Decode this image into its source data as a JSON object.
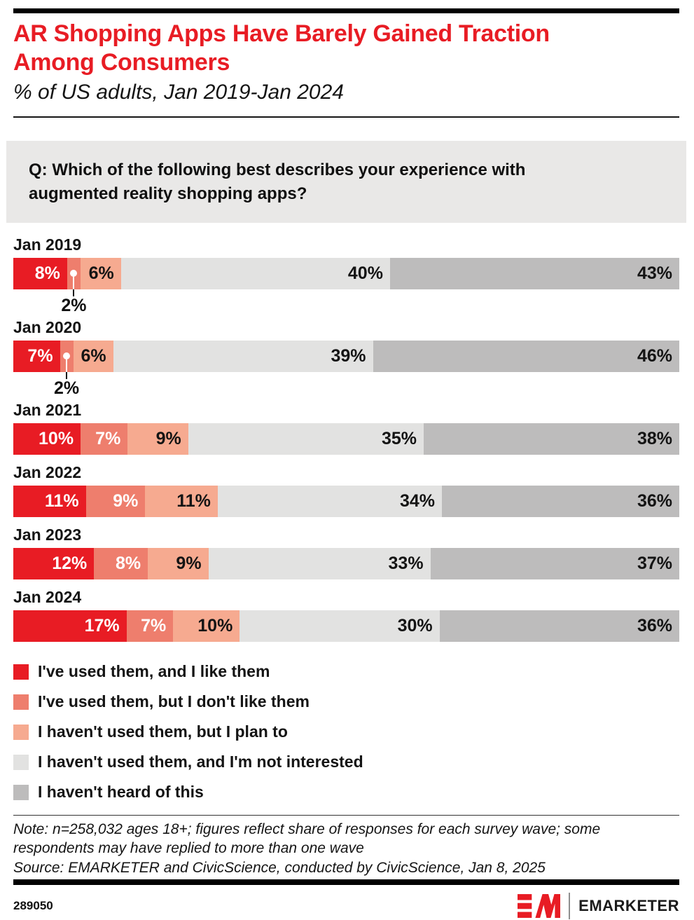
{
  "header": {
    "title_line1": "AR Shopping Apps Have Barely Gained Traction",
    "title_line2": "Among Consumers",
    "subtitle": "% of US adults, Jan 2019-Jan 2024"
  },
  "question": {
    "line1": "Q: Which of the following best describes your experience with",
    "line2": "augmented reality shopping apps?"
  },
  "chart_data": {
    "type": "bar",
    "variant": "horizontal-stacked-100",
    "unit": "%",
    "callout_max": 2,
    "legend_position": "bottom",
    "categories": [
      "Jan 2019",
      "Jan 2020",
      "Jan 2021",
      "Jan 2022",
      "Jan 2023",
      "Jan 2024"
    ],
    "series": [
      {
        "name": "I've used them, and I like them",
        "color": "#e81c24",
        "text_color": "#ffffff",
        "values": [
          8,
          7,
          10,
          11,
          12,
          17
        ]
      },
      {
        "name": "I've used them, but I don't like them",
        "color": "#ee7e6d",
        "text_color": "#ffffff",
        "values": [
          2,
          2,
          7,
          9,
          8,
          7
        ]
      },
      {
        "name": "I haven't used them, but I plan to",
        "color": "#f6aa90",
        "text_color": "#141414",
        "values": [
          6,
          6,
          9,
          11,
          9,
          10
        ]
      },
      {
        "name": "I haven't used them, and I'm not interested",
        "color": "#e2e2e1",
        "text_color": "#141414",
        "values": [
          40,
          39,
          35,
          34,
          33,
          30
        ]
      },
      {
        "name": "I haven't heard of this",
        "color": "#bdbcbc",
        "text_color": "#141414",
        "values": [
          43,
          46,
          38,
          36,
          37,
          36
        ]
      }
    ]
  },
  "note": {
    "line1": "Note: n=258,032 ages 18+; figures reflect share of responses for each survey wave; some",
    "line2": "respondents may have replied to more than one wave",
    "source": "Source: EMARKETER and CivicScience, conducted by CivicScience, Jan 8, 2025"
  },
  "footer": {
    "chart_id": "289050",
    "brand": "EMARKETER",
    "brand_color": "#e81c24"
  }
}
